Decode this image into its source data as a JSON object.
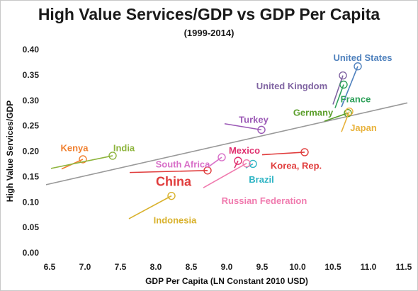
{
  "chart_data": {
    "type": "scatter",
    "title": "High Value Services/GDP vs GDP Per Capita",
    "subtitle": "(1999-2014)",
    "xlabel": "GDP Per Capita (LN Constant 2010 USD)",
    "ylabel": "High Value Services/GDP",
    "xlim": [
      6.5,
      11.5
    ],
    "ylim": [
      0.0,
      0.4
    ],
    "x_ticks": [
      "6.5",
      "7.0",
      "7.5",
      "8.0",
      "8.5",
      "9.0",
      "9.5",
      "10.0",
      "10.5",
      "11.0",
      "11.5"
    ],
    "y_ticks": [
      "0.00",
      "0.05",
      "0.10",
      "0.15",
      "0.20",
      "0.25",
      "0.30",
      "0.35",
      "0.40"
    ],
    "grid": false,
    "trendline": {
      "x": [
        6.45,
        11.55
      ],
      "y": [
        0.134,
        0.295
      ],
      "color": "#999999"
    },
    "series": [
      {
        "name": "United States",
        "color": "#4F81BD",
        "x": [
          10.62,
          10.85
        ],
        "y": [
          0.287,
          0.367
        ],
        "label_at": [
          10.92,
          0.378
        ],
        "label_size": 13
      },
      {
        "name": "United Kingdom",
        "color": "#8064A2",
        "x": [
          10.5,
          10.64
        ],
        "y": [
          0.292,
          0.349
        ],
        "label_at": [
          9.92,
          0.322
        ],
        "label_size": 13
      },
      {
        "name": "France",
        "color": "#2EA05A",
        "x": [
          10.53,
          10.65
        ],
        "y": [
          0.285,
          0.331
        ],
        "label_at": [
          10.82,
          0.296
        ],
        "label_size": 13
      },
      {
        "name": "Germany",
        "color": "#5A9E2A",
        "x": [
          10.38,
          10.71
        ],
        "y": [
          0.259,
          0.275
        ],
        "label_at": [
          10.22,
          0.27
        ],
        "label_size": 13
      },
      {
        "name": "Japan",
        "color": "#E8B23B",
        "x": [
          10.62,
          10.73
        ],
        "y": [
          0.238,
          0.278
        ],
        "label_at": [
          10.93,
          0.24
        ],
        "label_size": 13
      },
      {
        "name": "Turkey",
        "color": "#9B59B6",
        "x": [
          8.97,
          9.49
        ],
        "y": [
          0.254,
          0.242
        ],
        "label_at": [
          9.38,
          0.256
        ],
        "label_size": 13
      },
      {
        "name": "Kenya",
        "color": "#F07F2E",
        "x": [
          6.67,
          6.97
        ],
        "y": [
          0.165,
          0.184
        ],
        "label_at": [
          6.85,
          0.2
        ],
        "label_size": 13
      },
      {
        "name": "India",
        "color": "#8DB43C",
        "x": [
          6.52,
          7.39
        ],
        "y": [
          0.166,
          0.191
        ],
        "label_at": [
          7.55,
          0.2
        ],
        "label_size": 13
      },
      {
        "name": "South Africa",
        "color": "#D870C8",
        "x": [
          8.76,
          8.93
        ],
        "y": [
          0.171,
          0.188
        ],
        "label_at": [
          8.38,
          0.168
        ],
        "label_size": 13
      },
      {
        "name": "Mexico",
        "color": "#E0306F",
        "x": [
          9.11,
          9.16
        ],
        "y": [
          0.167,
          0.181
        ],
        "label_at": [
          9.25,
          0.195
        ],
        "label_size": 13
      },
      {
        "name": "Korea, Rep.",
        "color": "#E03C3C",
        "x": [
          9.5,
          10.1
        ],
        "y": [
          0.193,
          0.198
        ],
        "label_at": [
          9.98,
          0.165
        ],
        "label_size": 13
      },
      {
        "name": "Brazil",
        "color": "#2EB4C4",
        "x": [
          9.27,
          9.37
        ],
        "y": [
          0.167,
          0.175
        ],
        "label_at": [
          9.49,
          0.138
        ],
        "label_size": 13
      },
      {
        "name": "China",
        "color": "#E03C3C",
        "x": [
          7.63,
          8.73
        ],
        "y": [
          0.158,
          0.162
        ],
        "label_at": [
          8.25,
          0.132
        ],
        "label_size": 18
      },
      {
        "name": "Russian Federation",
        "color": "#F07AAE",
        "x": [
          8.67,
          9.28
        ],
        "y": [
          0.128,
          0.176
        ],
        "label_at": [
          9.53,
          0.096
        ],
        "label_size": 13
      },
      {
        "name": "Indonesia",
        "color": "#D9B22D",
        "x": [
          7.62,
          8.22
        ],
        "y": [
          0.067,
          0.112
        ],
        "label_at": [
          8.27,
          0.058
        ],
        "label_size": 13
      }
    ]
  }
}
